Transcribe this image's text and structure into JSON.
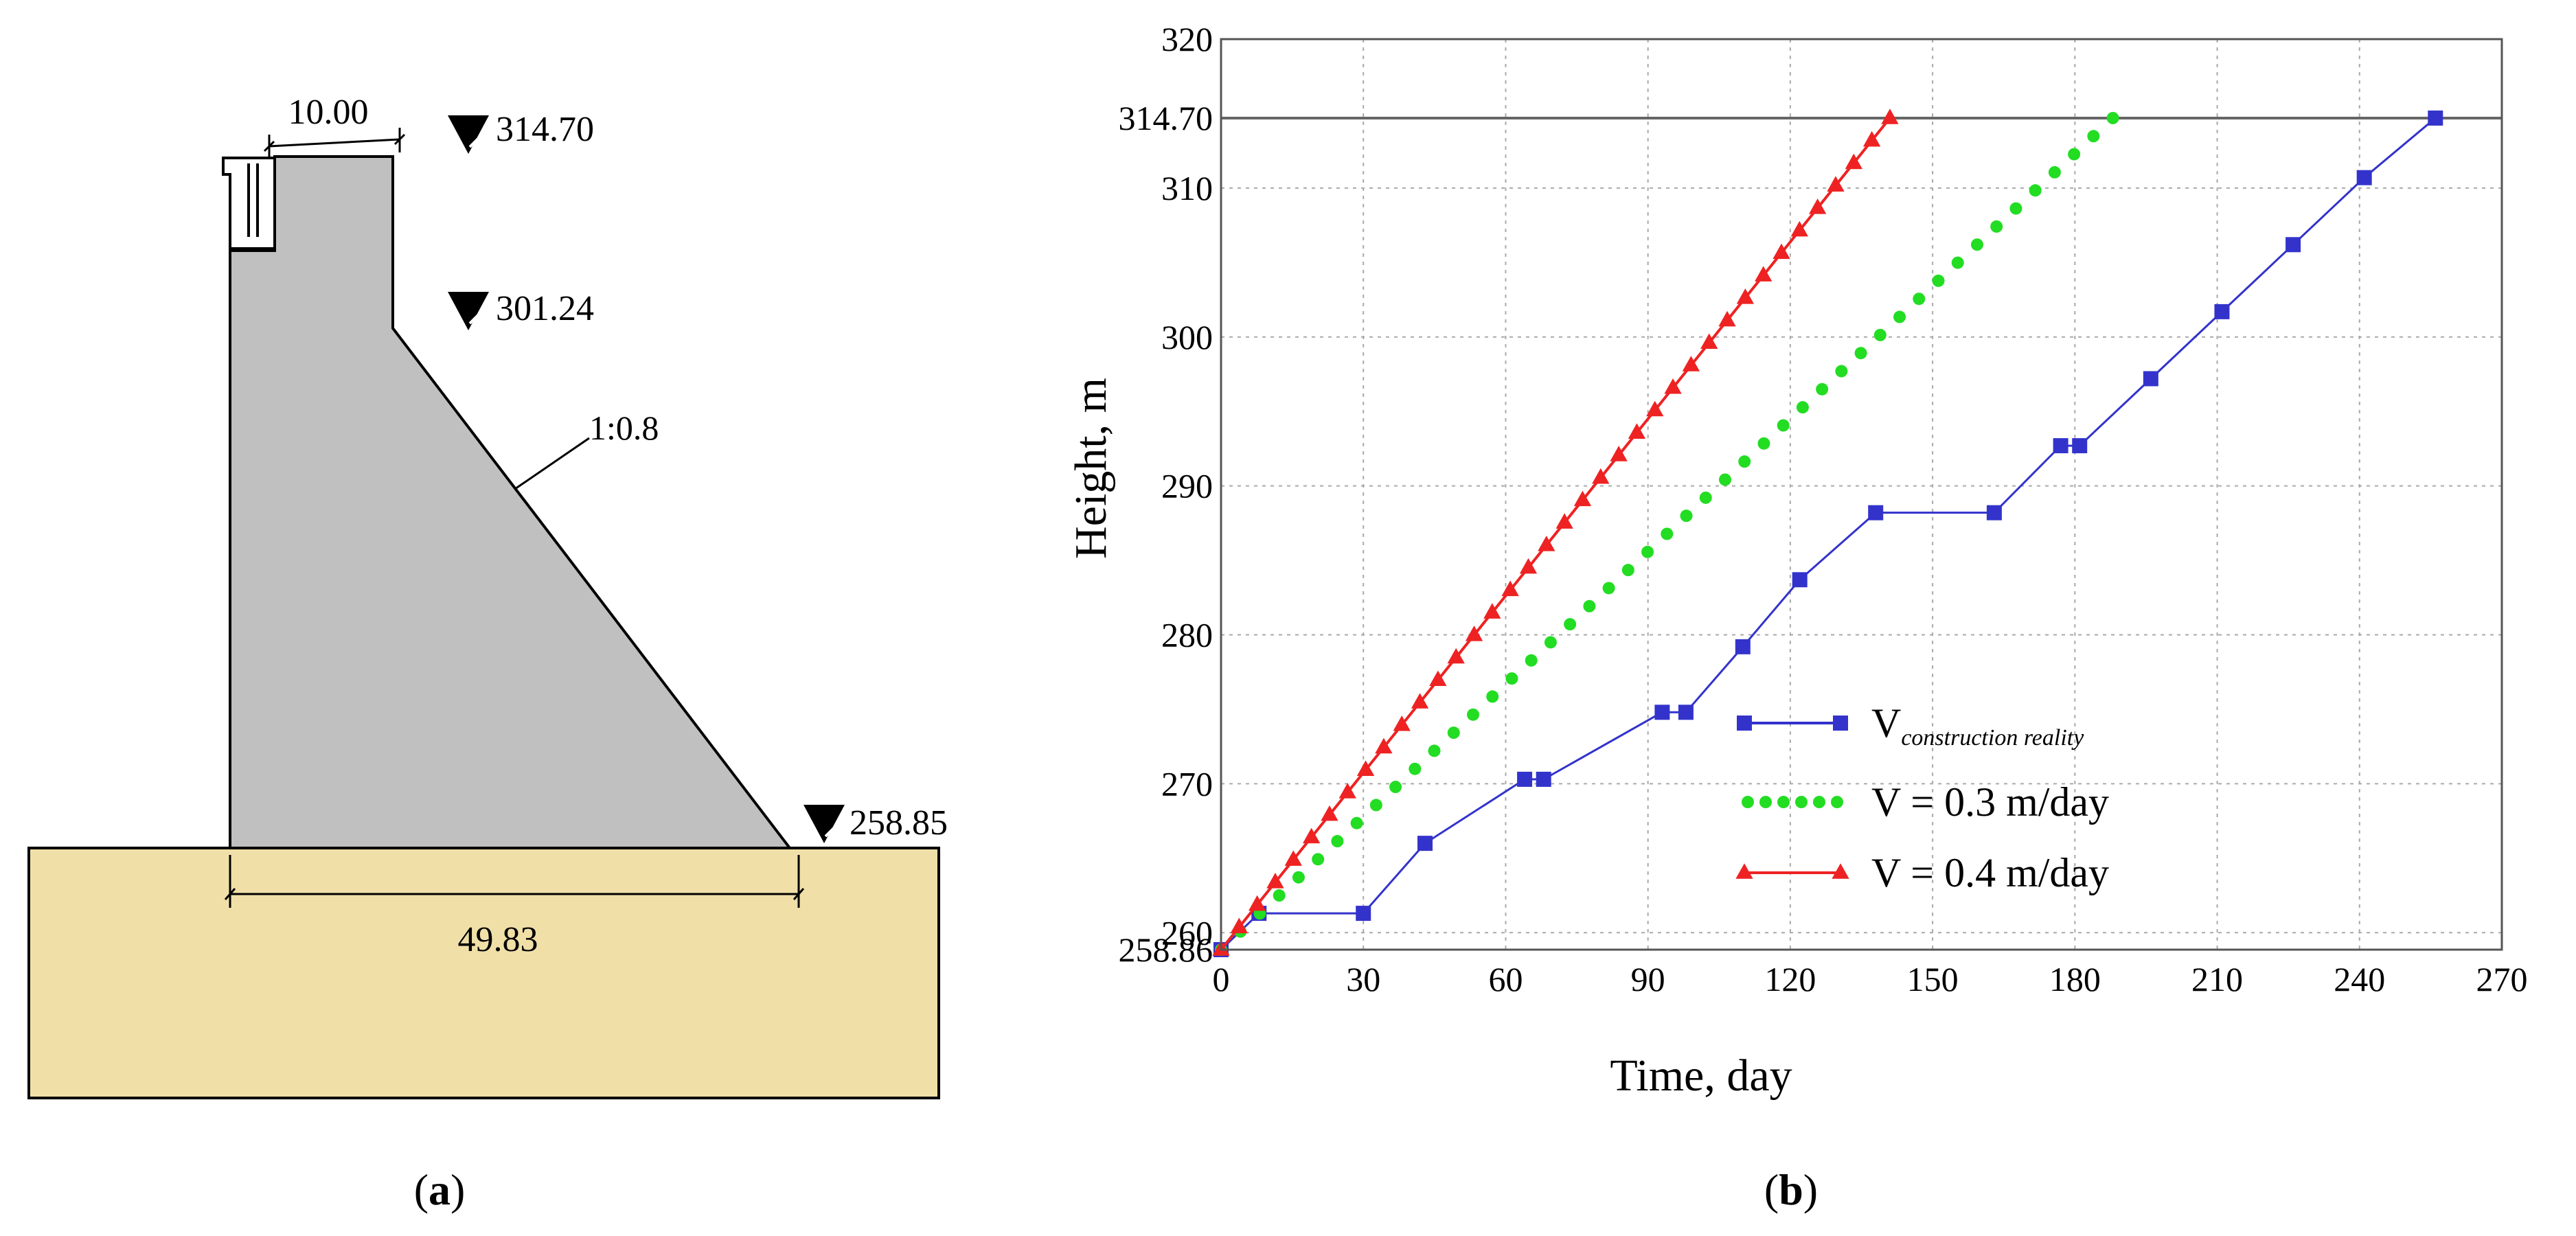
{
  "panel_a": {
    "caption_open": "(",
    "caption_letter": "a",
    "caption_close": ")",
    "crest_width": "10.00",
    "base_width": "49.83",
    "slope_label": "1:0.8",
    "elevations": {
      "crest": "314.70",
      "slope_start": "301.24",
      "base": "258.85"
    },
    "colors": {
      "dam": "#c0c0c0",
      "foundation": "#f0e0a8"
    }
  },
  "panel_b": {
    "caption_open": "(",
    "caption_letter": "b",
    "caption_close": ")"
  },
  "chart_data": {
    "type": "line",
    "xlabel": "Time, day",
    "ylabel": "Height, m",
    "xlim": [
      0,
      270
    ],
    "ylim": [
      258.86,
      320
    ],
    "x_ticks": [
      0,
      30,
      60,
      90,
      120,
      150,
      180,
      210,
      240,
      270
    ],
    "y_ticks": [
      {
        "value": 258.86,
        "label": "258.86"
      },
      {
        "value": 260,
        "label": "260"
      },
      {
        "value": 270,
        "label": "270"
      },
      {
        "value": 280,
        "label": "280"
      },
      {
        "value": 290,
        "label": "290"
      },
      {
        "value": 300,
        "label": "300"
      },
      {
        "value": 310,
        "label": "310"
      },
      {
        "value": 314.7,
        "label": "314.70"
      },
      {
        "value": 320,
        "label": "320"
      }
    ],
    "grid": true,
    "reference_line": 314.7,
    "legend_position": "lower-right",
    "series": [
      {
        "name": "V",
        "name_subscript": "construction reality",
        "color": "#3333cc",
        "marker": "square",
        "points": [
          [
            0,
            258.86
          ],
          [
            8,
            261.3
          ],
          [
            30,
            261.3
          ],
          [
            43,
            266
          ],
          [
            64,
            270.3
          ],
          [
            68,
            270.3
          ],
          [
            93,
            274.8
          ],
          [
            98,
            274.8
          ],
          [
            110,
            279.2
          ],
          [
            122,
            283.7
          ],
          [
            138,
            288.2
          ],
          [
            163,
            288.2
          ],
          [
            177,
            292.7
          ],
          [
            181,
            292.7
          ],
          [
            196,
            297.2
          ],
          [
            211,
            301.7
          ],
          [
            226,
            306.2
          ],
          [
            241,
            310.7
          ],
          [
            256,
            314.7
          ]
        ]
      },
      {
        "name": "V = 0.3 m/day",
        "color": "#22dd22",
        "marker": "circle",
        "rate": 0.3,
        "points": [
          [
            0,
            258.86
          ],
          [
            188,
            314.7
          ]
        ]
      },
      {
        "name": "V = 0.4 m/day",
        "color": "#ee2222",
        "marker": "triangle",
        "rate": 0.4,
        "points": [
          [
            0,
            258.86
          ],
          [
            141,
            314.7
          ]
        ]
      }
    ]
  }
}
